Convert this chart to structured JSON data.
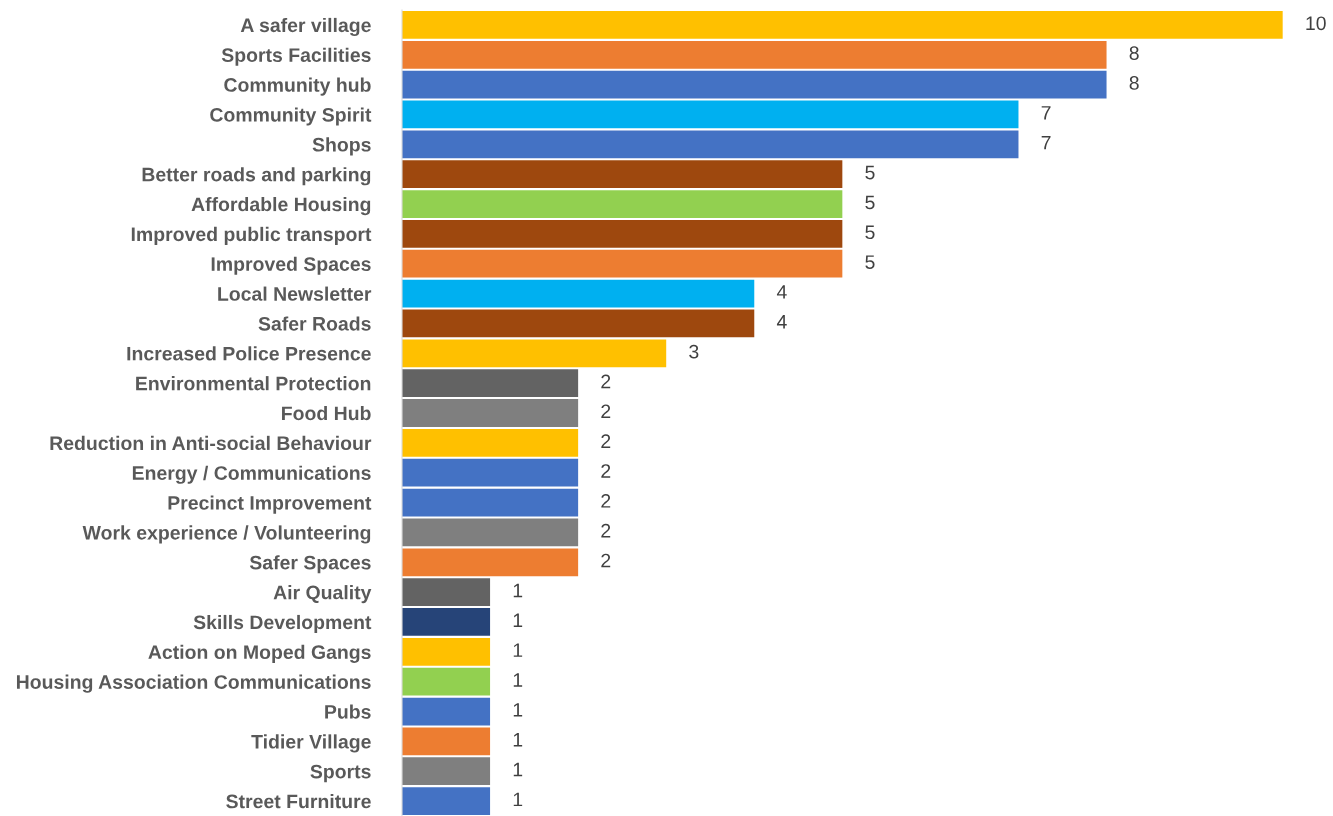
{
  "chart_data": {
    "type": "bar",
    "orientation": "horizontal",
    "data_labels": true,
    "categories": [
      "A safer village",
      "Sports Facilities",
      "Community hub",
      "Community Spirit",
      "Shops",
      "Better roads and parking",
      "Affordable Housing",
      "Improved public transport",
      "Improved Spaces",
      "Local Newsletter",
      "Safer Roads",
      "Increased Police Presence",
      "Environmental Protection",
      "Food Hub",
      "Reduction in Anti-social Behaviour",
      "Energy / Communications",
      "Precinct Improvement",
      "Work experience / Volunteering",
      "Safer Spaces",
      "Air Quality",
      "Skills Development",
      "Action on Moped Gangs",
      "Housing Association Communications",
      "Pubs",
      "Tidier Village",
      "Sports",
      "Street Furniture"
    ],
    "values": [
      10,
      8,
      8,
      7,
      7,
      5,
      5,
      5,
      5,
      4,
      4,
      3,
      2,
      2,
      2,
      2,
      2,
      2,
      2,
      1,
      1,
      1,
      1,
      1,
      1,
      1,
      1
    ],
    "colors": [
      "#ffc000",
      "#ed7d31",
      "#4472c4",
      "#00b0f0",
      "#4472c4",
      "#9e480e",
      "#92d050",
      "#9e480e",
      "#ed7d31",
      "#00b0f0",
      "#9e480e",
      "#ffc000",
      "#636363",
      "#7f7f7f",
      "#ffc000",
      "#4472c4",
      "#4472c4",
      "#7f7f7f",
      "#ed7d31",
      "#636363",
      "#264478",
      "#ffc000",
      "#92d050",
      "#4472c4",
      "#ed7d31",
      "#7f7f7f",
      "#4472c4"
    ],
    "grid": false,
    "legend": false
  }
}
